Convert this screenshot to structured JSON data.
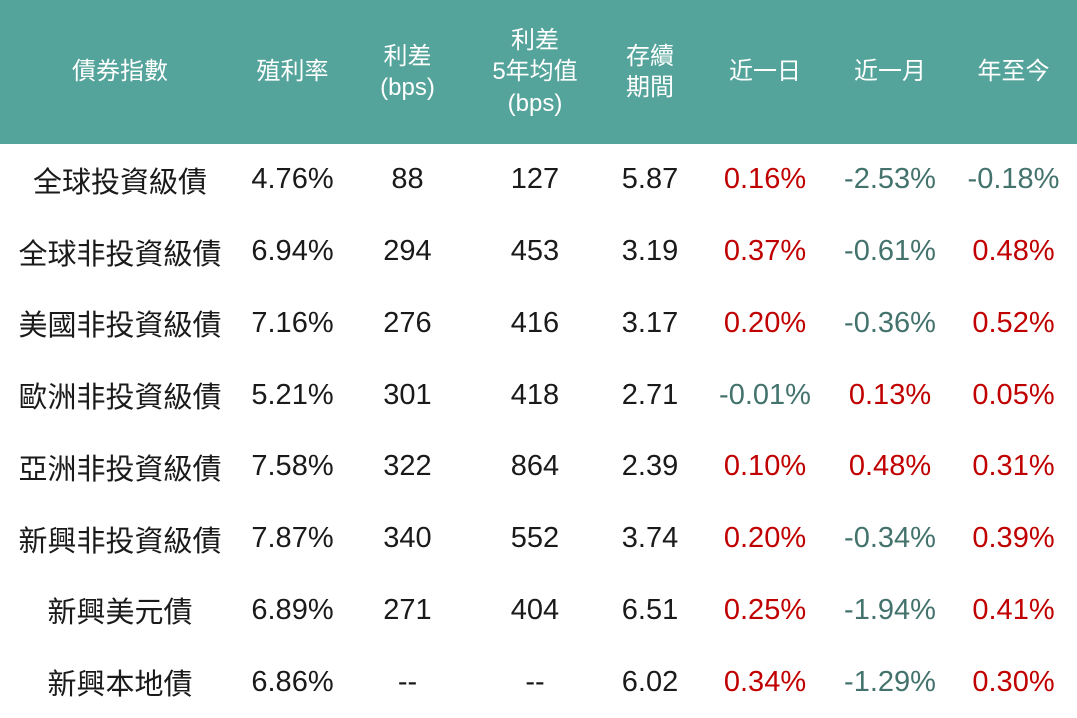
{
  "colors": {
    "header_bg": "#55A49B",
    "header_text": "#FFFFFF",
    "positive_change": "#C00000",
    "negative_change": "#44736D",
    "body_text": "#1A1A1A"
  },
  "table": {
    "columns": [
      {
        "label": "債券指數"
      },
      {
        "label": "殖利率"
      },
      {
        "label": "利差\n(bps)"
      },
      {
        "label": "利差\n5年均值\n(bps)"
      },
      {
        "label": "存續\n期間"
      },
      {
        "label": "近一日"
      },
      {
        "label": "近一月"
      },
      {
        "label": "年至今"
      }
    ],
    "rows": [
      {
        "name": "全球投資級債",
        "yield": "4.76%",
        "spread": "88",
        "spread_5y": "127",
        "duration": "5.87",
        "d1": {
          "text": "0.16%",
          "tone": "up"
        },
        "m1": {
          "text": "-2.53%",
          "tone": "down"
        },
        "ytd": {
          "text": "-0.18%",
          "tone": "down"
        }
      },
      {
        "name": "全球非投資級債",
        "yield": "6.94%",
        "spread": "294",
        "spread_5y": "453",
        "duration": "3.19",
        "d1": {
          "text": "0.37%",
          "tone": "up"
        },
        "m1": {
          "text": "-0.61%",
          "tone": "down"
        },
        "ytd": {
          "text": "0.48%",
          "tone": "up"
        }
      },
      {
        "name": "美國非投資級債",
        "yield": "7.16%",
        "spread": "276",
        "spread_5y": "416",
        "duration": "3.17",
        "d1": {
          "text": "0.20%",
          "tone": "up"
        },
        "m1": {
          "text": "-0.36%",
          "tone": "down"
        },
        "ytd": {
          "text": "0.52%",
          "tone": "up"
        }
      },
      {
        "name": "歐洲非投資級債",
        "yield": "5.21%",
        "spread": "301",
        "spread_5y": "418",
        "duration": "2.71",
        "d1": {
          "text": "-0.01%",
          "tone": "down"
        },
        "m1": {
          "text": "0.13%",
          "tone": "up"
        },
        "ytd": {
          "text": "0.05%",
          "tone": "up"
        }
      },
      {
        "name": "亞洲非投資級債",
        "yield": "7.58%",
        "spread": "322",
        "spread_5y": "864",
        "duration": "2.39",
        "d1": {
          "text": "0.10%",
          "tone": "up"
        },
        "m1": {
          "text": "0.48%",
          "tone": "up"
        },
        "ytd": {
          "text": "0.31%",
          "tone": "up"
        }
      },
      {
        "name": "新興非投資級債",
        "yield": "7.87%",
        "spread": "340",
        "spread_5y": "552",
        "duration": "3.74",
        "d1": {
          "text": "0.20%",
          "tone": "up"
        },
        "m1": {
          "text": "-0.34%",
          "tone": "down"
        },
        "ytd": {
          "text": "0.39%",
          "tone": "up"
        }
      },
      {
        "name": "新興美元債",
        "yield": "6.89%",
        "spread": "271",
        "spread_5y": "404",
        "duration": "6.51",
        "d1": {
          "text": "0.25%",
          "tone": "up"
        },
        "m1": {
          "text": "-1.94%",
          "tone": "down"
        },
        "ytd": {
          "text": "0.41%",
          "tone": "up"
        }
      },
      {
        "name": "新興本地債",
        "yield": "6.86%",
        "spread": "--",
        "spread_5y": "--",
        "duration": "6.02",
        "d1": {
          "text": "0.34%",
          "tone": "up"
        },
        "m1": {
          "text": "-1.29%",
          "tone": "down"
        },
        "ytd": {
          "text": "0.30%",
          "tone": "up"
        }
      }
    ]
  },
  "chart_data": {
    "type": "table",
    "title": "債券指數表現表",
    "columns": [
      "債券指數",
      "殖利率",
      "利差(bps)",
      "利差5年均值(bps)",
      "存續期間",
      "近一日",
      "近一月",
      "年至今"
    ],
    "rows": [
      [
        "全球投資級債",
        "4.76%",
        "88",
        "127",
        "5.87",
        "0.16%",
        "-2.53%",
        "-0.18%"
      ],
      [
        "全球非投資級債",
        "6.94%",
        "294",
        "453",
        "3.19",
        "0.37%",
        "-0.61%",
        "0.48%"
      ],
      [
        "美國非投資級債",
        "7.16%",
        "276",
        "416",
        "3.17",
        "0.20%",
        "-0.36%",
        "0.52%"
      ],
      [
        "歐洲非投資級債",
        "5.21%",
        "301",
        "418",
        "2.71",
        "-0.01%",
        "0.13%",
        "0.05%"
      ],
      [
        "亞洲非投資級債",
        "7.58%",
        "322",
        "864",
        "2.39",
        "0.10%",
        "0.48%",
        "0.31%"
      ],
      [
        "新興非投資級債",
        "7.87%",
        "340",
        "552",
        "3.74",
        "0.20%",
        "-0.34%",
        "0.39%"
      ],
      [
        "新興美元債",
        "6.89%",
        "271",
        "404",
        "6.51",
        "0.25%",
        "-1.94%",
        "0.41%"
      ],
      [
        "新興本地債",
        "6.86%",
        "--",
        "--",
        "6.02",
        "0.34%",
        "-1.29%",
        "0.30%"
      ]
    ],
    "layout_hints": {
      "header_background": "#55A49B",
      "positive_change_color": "#C00000",
      "negative_change_color": "#44736D",
      "grid": "off"
    }
  }
}
